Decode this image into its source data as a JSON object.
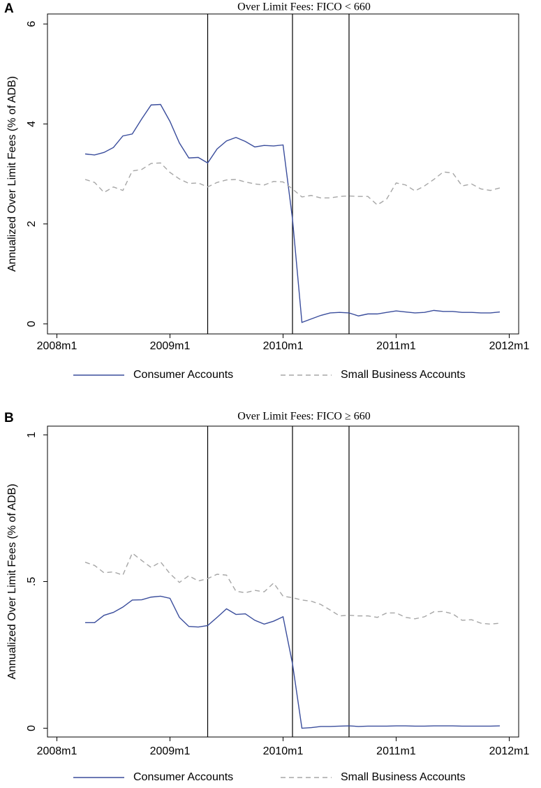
{
  "chart_data": [
    {
      "type": "line",
      "panel": "A",
      "title": "Over Limit Fees: FICO < 660",
      "y_label": "Annualized Over Limit Fees (% of ADB)",
      "x": [
        "2008m4",
        "2008m5",
        "2008m6",
        "2008m7",
        "2008m8",
        "2008m9",
        "2008m10",
        "2008m11",
        "2008m12",
        "2009m1",
        "2009m2",
        "2009m3",
        "2009m4",
        "2009m5",
        "2009m6",
        "2009m7",
        "2009m8",
        "2009m9",
        "2009m10",
        "2009m11",
        "2009m12",
        "2010m1",
        "2010m2",
        "2010m3",
        "2010m4",
        "2010m5",
        "2010m6",
        "2010m7",
        "2010m8",
        "2010m9",
        "2010m10",
        "2010m11",
        "2010m12",
        "2011m1",
        "2011m2",
        "2011m3",
        "2011m4",
        "2011m5",
        "2011m6",
        "2011m7",
        "2011m8",
        "2011m9",
        "2011m10",
        "2011m11",
        "2011m12"
      ],
      "series": [
        {
          "name": "Consumer Accounts",
          "color": "#3a4d9c",
          "style": "solid",
          "values": [
            3.4,
            3.38,
            3.43,
            3.53,
            3.76,
            3.8,
            4.1,
            4.38,
            4.39,
            4.05,
            3.62,
            3.32,
            3.33,
            3.22,
            3.5,
            3.66,
            3.73,
            3.65,
            3.54,
            3.57,
            3.56,
            3.58,
            2.1,
            0.03,
            0.1,
            0.17,
            0.22,
            0.23,
            0.22,
            0.16,
            0.2,
            0.2,
            0.23,
            0.26,
            0.24,
            0.22,
            0.23,
            0.27,
            0.25,
            0.25,
            0.23,
            0.23,
            0.22,
            0.22,
            0.24
          ]
        },
        {
          "name": "Small Business Accounts",
          "color": "#a6a6a6",
          "style": "dashed",
          "values": [
            2.89,
            2.83,
            2.63,
            2.74,
            2.67,
            3.06,
            3.09,
            3.21,
            3.22,
            3.03,
            2.9,
            2.81,
            2.82,
            2.74,
            2.83,
            2.88,
            2.89,
            2.84,
            2.8,
            2.78,
            2.85,
            2.84,
            2.7,
            2.54,
            2.57,
            2.52,
            2.52,
            2.55,
            2.56,
            2.55,
            2.55,
            2.38,
            2.5,
            2.82,
            2.78,
            2.66,
            2.76,
            2.89,
            3.04,
            3.02,
            2.76,
            2.8,
            2.7,
            2.67,
            2.72
          ]
        }
      ],
      "xlim": [
        "2007m12",
        "2012m2"
      ],
      "xticks": [
        "2008m1",
        "2009m1",
        "2010m1",
        "2011m1",
        "2012m1"
      ],
      "ylim": [
        -0.2,
        6.2
      ],
      "yticks": [
        0,
        2,
        4,
        6
      ],
      "vlines": [
        "2009m5",
        "2010m2",
        "2010m8"
      ]
    },
    {
      "type": "line",
      "panel": "B",
      "title": "Over Limit Fees: FICO ≥ 660",
      "y_label": "Annualized Over Limit Fees (% of ADB)",
      "x": [
        "2008m4",
        "2008m5",
        "2008m6",
        "2008m7",
        "2008m8",
        "2008m9",
        "2008m10",
        "2008m11",
        "2008m12",
        "2009m1",
        "2009m2",
        "2009m3",
        "2009m4",
        "2009m5",
        "2009m6",
        "2009m7",
        "2009m8",
        "2009m9",
        "2009m10",
        "2009m11",
        "2009m12",
        "2010m1",
        "2010m2",
        "2010m3",
        "2010m4",
        "2010m5",
        "2010m6",
        "2010m7",
        "2010m8",
        "2010m9",
        "2010m10",
        "2010m11",
        "2010m12",
        "2011m1",
        "2011m2",
        "2011m3",
        "2011m4",
        "2011m5",
        "2011m6",
        "2011m7",
        "2011m8",
        "2011m9",
        "2011m10",
        "2011m11",
        "2011m12"
      ],
      "series": [
        {
          "name": "Consumer Accounts",
          "color": "#3a4d9c",
          "style": "solid",
          "values": [
            0.36,
            0.36,
            0.385,
            0.395,
            0.413,
            0.437,
            0.438,
            0.447,
            0.45,
            0.443,
            0.378,
            0.347,
            0.345,
            0.35,
            0.378,
            0.407,
            0.388,
            0.39,
            0.368,
            0.355,
            0.365,
            0.38,
            0.22,
            0.0,
            0.002,
            0.006,
            0.006,
            0.007,
            0.008,
            0.006,
            0.007,
            0.007,
            0.007,
            0.008,
            0.008,
            0.007,
            0.007,
            0.008,
            0.008,
            0.008,
            0.007,
            0.007,
            0.007,
            0.007,
            0.008
          ]
        },
        {
          "name": "Small Business Accounts",
          "color": "#a6a6a6",
          "style": "dashed",
          "values": [
            0.566,
            0.555,
            0.53,
            0.533,
            0.522,
            0.597,
            0.572,
            0.548,
            0.567,
            0.527,
            0.497,
            0.52,
            0.502,
            0.51,
            0.525,
            0.522,
            0.467,
            0.462,
            0.47,
            0.465,
            0.495,
            0.45,
            0.445,
            0.437,
            0.433,
            0.422,
            0.403,
            0.383,
            0.385,
            0.383,
            0.383,
            0.378,
            0.393,
            0.393,
            0.378,
            0.373,
            0.38,
            0.397,
            0.398,
            0.39,
            0.368,
            0.37,
            0.358,
            0.355,
            0.358
          ]
        }
      ],
      "xlim": [
        "2007m12",
        "2012m2"
      ],
      "xticks": [
        "2008m1",
        "2009m1",
        "2010m1",
        "2011m1",
        "2012m1"
      ],
      "ylim": [
        -0.03,
        1.03
      ],
      "yticks": [
        0,
        {
          "value": 0.5,
          "label": ".5"
        },
        1
      ],
      "vlines": [
        "2009m5",
        "2010m2",
        "2010m8"
      ]
    }
  ]
}
